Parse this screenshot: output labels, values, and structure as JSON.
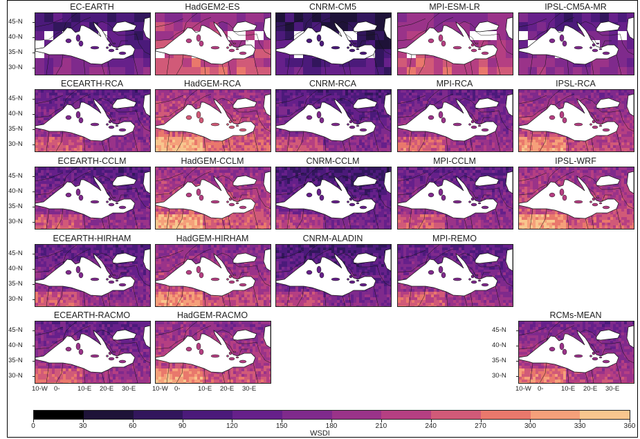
{
  "figure": {
    "panels": [
      {
        "title": "EC-EARTH",
        "kind": "gcm",
        "seed": 1,
        "level": 0.28
      },
      {
        "title": "HadGEM2-ES",
        "kind": "gcm",
        "seed": 2,
        "level": 0.55
      },
      {
        "title": "CNRM-CM5",
        "kind": "gcm",
        "seed": 3,
        "level": 0.18
      },
      {
        "title": "MPI-ESM-LR",
        "kind": "gcm",
        "seed": 4,
        "level": 0.52
      },
      {
        "title": "IPSL-CM5A-MR",
        "kind": "gcm",
        "seed": 5,
        "level": 0.35
      },
      {
        "title": "ECEARTH-RCA",
        "kind": "rcm",
        "seed": 6,
        "level": 0.38
      },
      {
        "title": "HadGEM-RCA",
        "kind": "rcm",
        "seed": 7,
        "level": 0.58
      },
      {
        "title": "CNRM-RCA",
        "kind": "rcm",
        "seed": 8,
        "level": 0.33
      },
      {
        "title": "MPI-RCA",
        "kind": "rcm",
        "seed": 9,
        "level": 0.4
      },
      {
        "title": "IPSL-RCA",
        "kind": "rcm",
        "seed": 10,
        "level": 0.5
      },
      {
        "title": "ECEARTH-CCLM",
        "kind": "rcm",
        "seed": 11,
        "level": 0.36
      },
      {
        "title": "HadGEM-CCLM",
        "kind": "rcm",
        "seed": 12,
        "level": 0.55
      },
      {
        "title": "CNRM-CCLM",
        "kind": "rcm",
        "seed": 13,
        "level": 0.28
      },
      {
        "title": "MPI-CCLM",
        "kind": "rcm",
        "seed": 14,
        "level": 0.38
      },
      {
        "title": "IPSL-WRF",
        "kind": "rcm",
        "seed": 15,
        "level": 0.55
      },
      {
        "title": "ECEARTH-HIRHAM",
        "kind": "rcm",
        "seed": 16,
        "level": 0.36
      },
      {
        "title": "HadGEM-HIRHAM",
        "kind": "rcm",
        "seed": 17,
        "level": 0.5
      },
      {
        "title": "CNRM-ALADIN",
        "kind": "rcm",
        "seed": 18,
        "level": 0.3
      },
      {
        "title": "MPI-REMO",
        "kind": "rcm",
        "seed": 19,
        "level": 0.38
      },
      {
        "title": "ECEARTH-RACMO",
        "kind": "rcm",
        "seed": 20,
        "level": 0.4
      },
      {
        "title": "HadGEM-RACMO",
        "kind": "rcm",
        "seed": 21,
        "level": 0.52
      },
      {
        "title": "RCMs-MEAN",
        "kind": "rcm",
        "seed": 22,
        "level": 0.45
      }
    ],
    "lat_labels": [
      "45◦N",
      "40◦N",
      "35◦N",
      "30◦N"
    ],
    "lon_labels": [
      "10◦W",
      "0◦",
      "10◦E",
      "20◦E",
      "30◦E"
    ],
    "colorbar": {
      "title": "WSDI",
      "ticks": [
        "0",
        "30",
        "60",
        "90",
        "120",
        "150",
        "180",
        "210",
        "240",
        "270",
        "300",
        "330",
        "360"
      ],
      "colors": [
        "#000000",
        "#1e1238",
        "#32165c",
        "#4b1a7a",
        "#66208a",
        "#7f2a8c",
        "#9a3389",
        "#b53f82",
        "#d15a78",
        "#e9786c",
        "#f5a07a",
        "#f8c68e",
        "#fbf2b8"
      ]
    }
  }
}
